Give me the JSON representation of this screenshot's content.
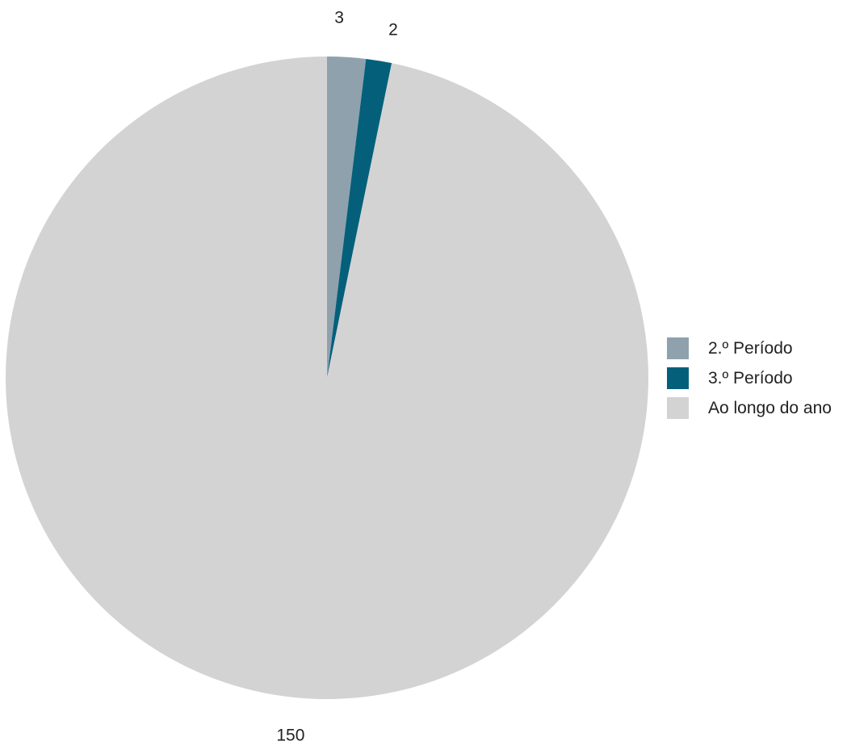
{
  "chart_data": {
    "type": "pie",
    "title": "",
    "categories": [
      "2.º Período",
      "3.º Período",
      "Ao longo do ano"
    ],
    "values": [
      3,
      2,
      150
    ],
    "colors": [
      "#8fa1ad",
      "#04607a",
      "#d3d3d3"
    ],
    "data_labels": [
      "3",
      "2",
      "150"
    ],
    "start_angle_deg": 0,
    "direction": "clockwise",
    "legend_position": "right"
  },
  "legend": {
    "items": [
      {
        "label": "2.º Período",
        "color": "#8fa1ad"
      },
      {
        "label": "3.º Período",
        "color": "#04607a"
      },
      {
        "label": "Ao longo do ano",
        "color": "#d3d3d3"
      }
    ]
  }
}
